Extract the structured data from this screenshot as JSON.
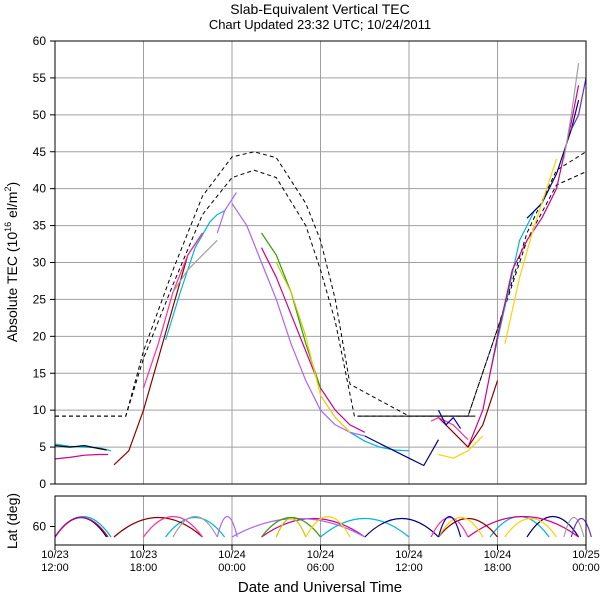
{
  "chart_data": {
    "type": "line",
    "title": "Slab-Equivalent Vertical TEC",
    "subtitle": "Chart Updated 23:32 UTC; 10/24/2011",
    "xlabel": "Date and Universal Time",
    "ylabel_main": "Absolute TEC (10",
    "ylabel_exp": "16",
    "ylabel_unit": " el/m",
    "ylabel_sq": "2",
    "ylabel_close": ")",
    "ylabel_lower": "Lat (deg)",
    "ylim": [
      0,
      60
    ],
    "lat_ticks": [
      "60"
    ],
    "y_ticks": [
      "0",
      "5",
      "10",
      "15",
      "20",
      "25",
      "30",
      "35",
      "40",
      "45",
      "50",
      "55",
      "60"
    ],
    "x_ticks": [
      {
        "date": "10/23",
        "time": "12:00"
      },
      {
        "date": "10/23",
        "time": "18:00"
      },
      {
        "date": "10/24",
        "time": "00:00"
      },
      {
        "date": "10/24",
        "time": "06:00"
      },
      {
        "date": "10/24",
        "time": "12:00"
      },
      {
        "date": "10/24",
        "time": "18:00"
      },
      {
        "date": "10/25",
        "time": "00:00"
      }
    ],
    "x_hours_range": [
      0,
      36
    ],
    "grid": true,
    "reference_curves": [
      {
        "style": "dashed",
        "x": [
          0,
          2,
          4,
          4.8,
          6,
          8,
          10,
          12,
          13.5,
          15,
          17,
          18,
          19,
          20,
          24,
          26,
          28,
          30,
          32,
          34,
          36
        ],
        "y": [
          9.2,
          9.2,
          9.2,
          9.2,
          18,
          29,
          39,
          44.3,
          45,
          44.2,
          38,
          33,
          25,
          13.5,
          9.2,
          9.2,
          9.2,
          21,
          34,
          42.5,
          45
        ]
      },
      {
        "style": "dashed",
        "x": [
          0,
          2,
          4,
          4.8,
          6,
          8,
          10,
          12,
          13.5,
          15,
          17,
          18,
          19,
          20.3,
          24,
          26,
          28,
          30,
          32,
          34,
          36
        ],
        "y": [
          9.2,
          9.2,
          9.2,
          9.2,
          17,
          27,
          36.5,
          41.5,
          42.5,
          41.5,
          35,
          29,
          22,
          9.2,
          9.2,
          9.2,
          9.2,
          21,
          33,
          40.5,
          42.3
        ]
      },
      {
        "style": "solid",
        "x": [
          20.5,
          28.5
        ],
        "y": [
          9.2,
          9.2
        ]
      }
    ],
    "series": [
      {
        "color": "#00b4dc",
        "x": [
          0,
          1,
          2,
          3,
          3.8
        ],
        "y": [
          5.4,
          5.1,
          5.0,
          4.9,
          4.5
        ]
      },
      {
        "color": "#00b4dc",
        "x": [
          7.5,
          8.5,
          9.5,
          10.5,
          11,
          11.5
        ],
        "y": [
          19.5,
          26,
          32,
          35.5,
          36.5,
          37
        ]
      },
      {
        "color": "#00b4dc",
        "x": [
          18,
          19,
          20,
          21,
          22,
          23,
          24
        ],
        "y": [
          12,
          9,
          7,
          5.8,
          5,
          4.6,
          4.5
        ]
      },
      {
        "color": "#00b4dc",
        "x": [
          29.5,
          30.5,
          31.5,
          32,
          32.5,
          33,
          33.5
        ],
        "y": [
          15,
          24,
          33,
          35,
          37,
          38,
          40
        ]
      },
      {
        "color": "#000000",
        "x": [
          0,
          1,
          2,
          3,
          3.5
        ],
        "y": [
          5.2,
          5.0,
          5.2,
          4.8,
          4.6
        ]
      },
      {
        "color": "#00007d",
        "x": [
          21,
          22,
          23,
          24,
          25,
          26
        ],
        "y": [
          6.5,
          5.5,
          4.5,
          3.5,
          2.5,
          6
        ]
      },
      {
        "color": "#00007d",
        "x": [
          32,
          33,
          34,
          35,
          35.5
        ],
        "y": [
          36,
          38,
          42,
          48,
          52
        ]
      },
      {
        "color": "#d2008c",
        "x": [
          0,
          1,
          2,
          3,
          3.6
        ],
        "y": [
          3.4,
          3.6,
          3.9,
          4.0,
          4.0
        ]
      },
      {
        "color": "#d2008c",
        "x": [
          14,
          15,
          16,
          17,
          18,
          19,
          20,
          21
        ],
        "y": [
          32,
          28,
          23,
          18,
          13,
          10,
          8,
          7
        ]
      },
      {
        "color": "#d2008c",
        "x": [
          28,
          29,
          30,
          31,
          32,
          33,
          34,
          35,
          35.5
        ],
        "y": [
          5,
          10,
          20,
          29,
          33,
          36,
          40,
          49,
          54
        ]
      },
      {
        "color": "#8c0000",
        "x": [
          4,
          5,
          6,
          7,
          8,
          9,
          10
        ],
        "y": [
          2.6,
          4.5,
          10,
          17,
          24,
          31,
          34
        ]
      },
      {
        "color": "#8c0000",
        "x": [
          26,
          27,
          28,
          29,
          30
        ],
        "y": [
          9,
          7,
          5,
          8,
          14
        ]
      },
      {
        "color": "#ff3296",
        "x": [
          6,
          7,
          8,
          9,
          10
        ],
        "y": [
          13,
          19,
          26,
          31,
          34
        ]
      },
      {
        "color": "#ff3296",
        "x": [
          25.5,
          26,
          27,
          28
        ],
        "y": [
          8.5,
          9,
          8,
          6
        ]
      },
      {
        "color": "#aa64ff",
        "x": [
          12,
          13,
          14,
          15,
          16,
          17,
          18,
          19,
          20,
          21
        ],
        "y": [
          38,
          35,
          30,
          25,
          19,
          14,
          10,
          8,
          7,
          6.5
        ]
      },
      {
        "color": "#aa64ff",
        "x": [
          11,
          11.5,
          12.3
        ],
        "y": [
          34,
          37,
          39.5
        ]
      },
      {
        "color": "#32a000",
        "x": [
          14,
          15,
          16,
          17,
          18
        ],
        "y": [
          34,
          31,
          26,
          19,
          13
        ]
      },
      {
        "color": "#c8c800",
        "x": [
          15,
          16,
          17
        ],
        "y": [
          30,
          26,
          20
        ]
      },
      {
        "color": "#ffd200",
        "x": [
          17,
          18,
          19,
          20
        ],
        "y": [
          20,
          12,
          9,
          7
        ]
      },
      {
        "color": "#ffd200",
        "x": [
          26,
          27,
          28,
          29
        ],
        "y": [
          4,
          3.5,
          4.5,
          6.5
        ]
      },
      {
        "color": "#ffd200",
        "x": [
          30.5,
          31.5,
          32.5,
          33.5,
          34
        ],
        "y": [
          19,
          28,
          35,
          41,
          44
        ]
      },
      {
        "color": "#a0a0a0",
        "x": [
          8,
          9,
          10,
          11
        ],
        "y": [
          26,
          29,
          31,
          33
        ]
      },
      {
        "color": "#a0a0a0",
        "x": [
          34.5,
          35,
          35.5
        ],
        "y": [
          44,
          50,
          57
        ]
      },
      {
        "color": "#6432c8",
        "x": [
          35,
          35.5,
          36
        ],
        "y": [
          48,
          50,
          55
        ]
      },
      {
        "color": "#0000c8",
        "x": [
          26,
          26.5,
          27,
          27.5
        ],
        "y": [
          10,
          8,
          9,
          7.5
        ]
      }
    ]
  }
}
